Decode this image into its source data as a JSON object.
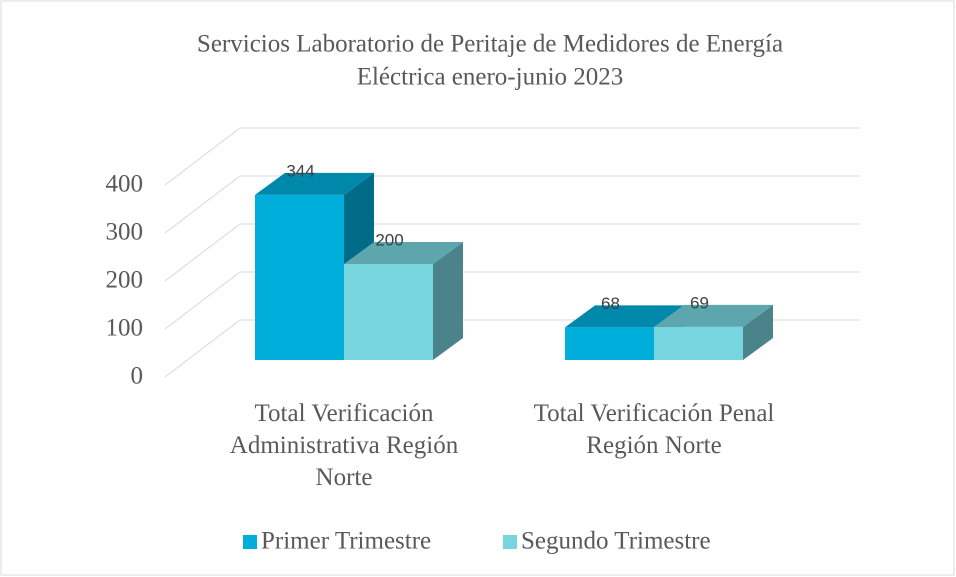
{
  "chart_data": {
    "type": "bar3d",
    "title": [
      "Servicios Laboratorio de Peritaje de Medidores de Energía",
      "Eléctrica enero-junio 2023"
    ],
    "categories": [
      "Total Verificación Administrativa Región Norte",
      "Total Verificación Penal Región Norte"
    ],
    "series": [
      {
        "name": "Primer Trimestre",
        "color": "#00aedb",
        "values": [
          344,
          68
        ]
      },
      {
        "name": "Segundo Trimestre",
        "color": "#77d5df",
        "values": [
          200,
          69
        ]
      }
    ],
    "ylim": [
      0,
      400
    ],
    "yticks": [
      0,
      100,
      200,
      300,
      400
    ],
    "grid": true,
    "legend": "bottom"
  }
}
